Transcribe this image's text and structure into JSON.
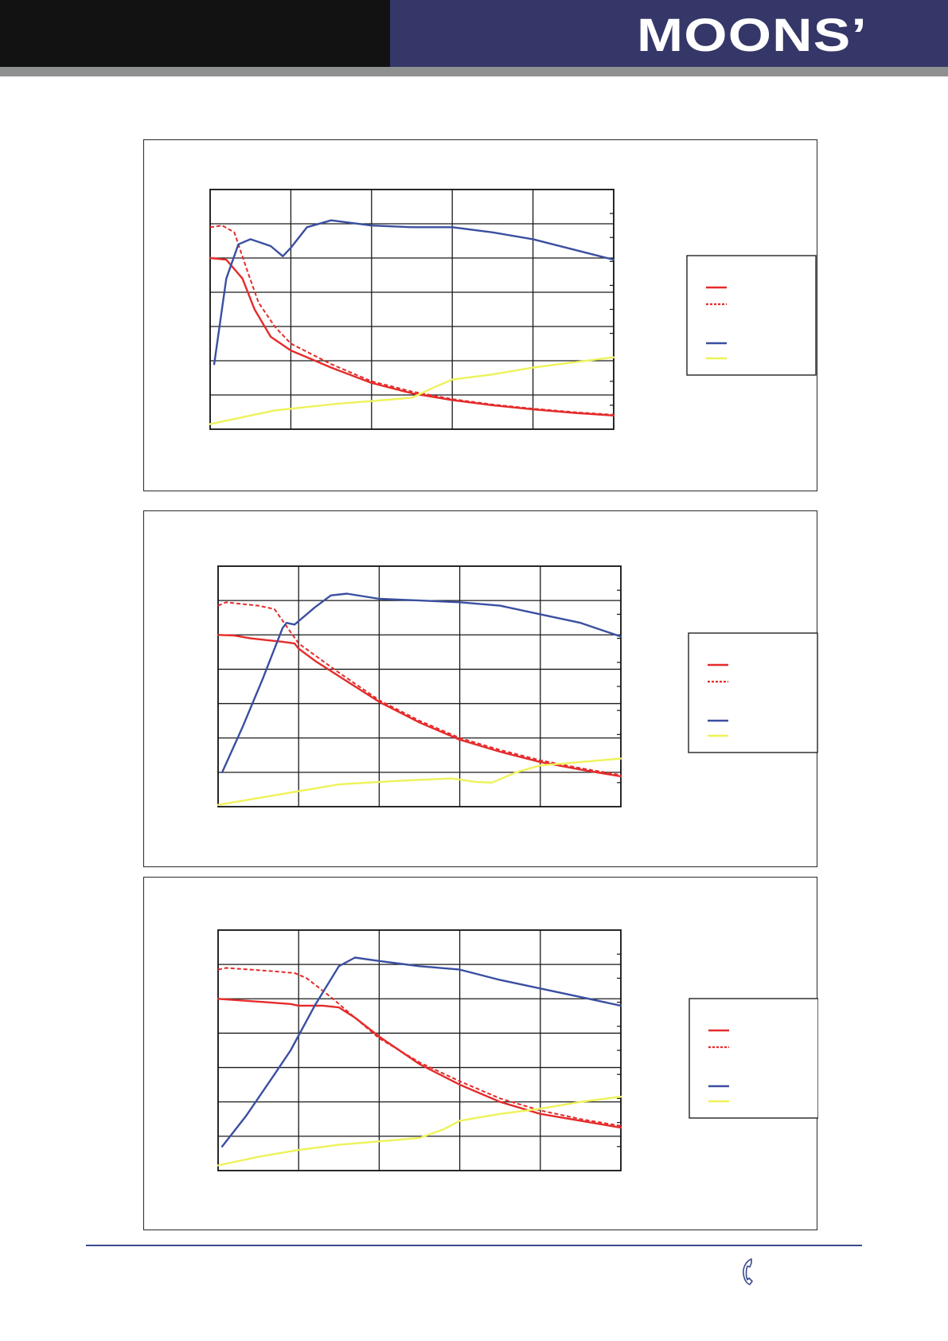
{
  "header": {
    "logo_text": "MOONS'",
    "colors": {
      "left_band": "#121212",
      "right_band": "#353769",
      "stripe": "#8f9090"
    }
  },
  "footer": {
    "icon": "phone-icon",
    "line_color": "#3a4a8a"
  },
  "series_colors": {
    "series_1": "#e52b2b",
    "series_2": "#e52b2b",
    "series_3": "#3a4fa0",
    "series_4": "#eef25a"
  },
  "chart_data": [
    {
      "type": "line",
      "title": "",
      "xlabel": "",
      "ylabel": "",
      "xlim": [
        0,
        5
      ],
      "ylim": [
        0,
        7
      ],
      "grid": true,
      "legend_position": "right",
      "series": [
        {
          "style": "solid",
          "color": "#e52b2b",
          "x": [
            0,
            0.2,
            0.4,
            0.55,
            0.75,
            1.0,
            1.5,
            2.0,
            2.5,
            3.0,
            3.5,
            4.0,
            4.5,
            5.0
          ],
          "values": [
            5.0,
            4.95,
            4.4,
            3.5,
            2.7,
            2.3,
            1.8,
            1.35,
            1.05,
            0.85,
            0.7,
            0.58,
            0.48,
            0.4
          ]
        },
        {
          "style": "dashed",
          "color": "#e52b2b",
          "x": [
            0,
            0.15,
            0.3,
            0.45,
            0.6,
            0.8,
            1.0,
            1.5,
            2.0,
            2.5,
            3.0,
            3.5,
            4.0,
            4.5,
            5.0
          ],
          "values": [
            5.9,
            5.95,
            5.75,
            4.7,
            3.7,
            3.0,
            2.5,
            1.9,
            1.4,
            1.1,
            0.88,
            0.72,
            0.6,
            0.5,
            0.42
          ]
        },
        {
          "style": "solid",
          "color": "#3a4fa0",
          "x": [
            0.05,
            0.2,
            0.35,
            0.5,
            0.75,
            0.9,
            1.0,
            1.2,
            1.5,
            2.0,
            2.5,
            3.0,
            3.5,
            4.0,
            4.5,
            5.0
          ],
          "values": [
            1.9,
            4.4,
            5.4,
            5.55,
            5.35,
            5.05,
            5.3,
            5.9,
            6.1,
            5.95,
            5.9,
            5.9,
            5.75,
            5.55,
            5.25,
            4.95
          ]
        },
        {
          "style": "solid",
          "color": "#eef25a",
          "x": [
            0,
            0.5,
            0.8,
            1.2,
            1.6,
            2.0,
            2.5,
            2.8,
            3.0,
            3.5,
            4.0,
            4.5,
            5.0
          ],
          "values": [
            0.15,
            0.4,
            0.55,
            0.65,
            0.75,
            0.82,
            0.92,
            1.25,
            1.45,
            1.6,
            1.8,
            1.95,
            2.1
          ]
        }
      ]
    },
    {
      "type": "line",
      "title": "",
      "xlabel": "",
      "ylabel": "",
      "xlim": [
        0,
        5
      ],
      "ylim": [
        0,
        7
      ],
      "grid": true,
      "legend_position": "right",
      "series": [
        {
          "style": "solid",
          "color": "#e52b2b",
          "x": [
            0,
            0.2,
            0.4,
            0.6,
            0.8,
            0.95,
            1.0,
            1.2,
            1.5,
            2.0,
            2.5,
            3.0,
            3.5,
            4.0,
            4.5,
            5.0
          ],
          "values": [
            5.0,
            4.98,
            4.9,
            4.85,
            4.8,
            4.75,
            4.6,
            4.25,
            3.8,
            3.05,
            2.45,
            1.95,
            1.6,
            1.3,
            1.08,
            0.88
          ]
        },
        {
          "style": "dashed",
          "color": "#e52b2b",
          "x": [
            0,
            0.1,
            0.3,
            0.5,
            0.7,
            0.85,
            1.0,
            1.5,
            2.0,
            2.5,
            3.0,
            3.5,
            4.0,
            4.5,
            5.0
          ],
          "values": [
            5.85,
            5.95,
            5.9,
            5.85,
            5.75,
            5.25,
            4.75,
            3.9,
            3.1,
            2.5,
            2.0,
            1.65,
            1.35,
            1.12,
            0.92
          ]
        },
        {
          "style": "solid",
          "color": "#3a4fa0",
          "x": [
            0.05,
            0.3,
            0.55,
            0.8,
            0.85,
            0.95,
            1.2,
            1.4,
            1.6,
            2.0,
            2.5,
            3.0,
            3.5,
            4.0,
            4.5,
            5.0
          ],
          "values": [
            1.0,
            2.3,
            3.7,
            5.2,
            5.35,
            5.3,
            5.8,
            6.15,
            6.2,
            6.05,
            6.0,
            5.95,
            5.85,
            5.6,
            5.35,
            4.95
          ]
        },
        {
          "style": "solid",
          "color": "#eef25a",
          "x": [
            0,
            0.5,
            1.0,
            1.5,
            2.0,
            2.5,
            2.9,
            3.2,
            3.4,
            3.7,
            4.0,
            4.5,
            5.0
          ],
          "values": [
            0.05,
            0.25,
            0.45,
            0.65,
            0.72,
            0.78,
            0.82,
            0.72,
            0.7,
            1.0,
            1.2,
            1.3,
            1.4
          ]
        }
      ]
    },
    {
      "type": "line",
      "title": "",
      "xlabel": "",
      "ylabel": "",
      "xlim": [
        0,
        5
      ],
      "ylim": [
        0,
        7
      ],
      "grid": true,
      "legend_position": "right",
      "series": [
        {
          "style": "solid",
          "color": "#e52b2b",
          "x": [
            0,
            0.3,
            0.6,
            0.9,
            1.0,
            1.3,
            1.5,
            1.7,
            2.0,
            2.5,
            3.0,
            3.5,
            4.0,
            4.5,
            5.0
          ],
          "values": [
            5.0,
            4.95,
            4.9,
            4.85,
            4.8,
            4.8,
            4.75,
            4.45,
            3.9,
            3.1,
            2.5,
            2.0,
            1.65,
            1.45,
            1.25
          ]
        },
        {
          "style": "dashed",
          "color": "#e52b2b",
          "x": [
            0,
            0.1,
            0.4,
            0.7,
            0.95,
            1.1,
            1.4,
            1.6,
            2.0,
            2.5,
            3.0,
            3.5,
            4.0,
            4.5,
            5.0
          ],
          "values": [
            5.85,
            5.9,
            5.85,
            5.8,
            5.75,
            5.6,
            5.05,
            4.65,
            3.85,
            3.15,
            2.6,
            2.1,
            1.75,
            1.5,
            1.3
          ]
        },
        {
          "style": "solid",
          "color": "#3a4fa0",
          "x": [
            0.05,
            0.35,
            0.7,
            0.9,
            1.2,
            1.5,
            1.7,
            2.0,
            2.5,
            3.0,
            3.5,
            4.0,
            4.5,
            5.0
          ],
          "values": [
            0.7,
            1.6,
            2.8,
            3.5,
            4.8,
            5.95,
            6.2,
            6.1,
            5.95,
            5.85,
            5.55,
            5.3,
            5.05,
            4.8
          ]
        },
        {
          "style": "solid",
          "color": "#eef25a",
          "x": [
            0,
            0.5,
            1.0,
            1.5,
            2.0,
            2.5,
            2.8,
            3.0,
            3.5,
            4.0,
            4.5,
            5.0
          ],
          "values": [
            0.15,
            0.4,
            0.6,
            0.75,
            0.85,
            0.95,
            1.2,
            1.45,
            1.65,
            1.8,
            2.0,
            2.15
          ]
        }
      ]
    }
  ]
}
